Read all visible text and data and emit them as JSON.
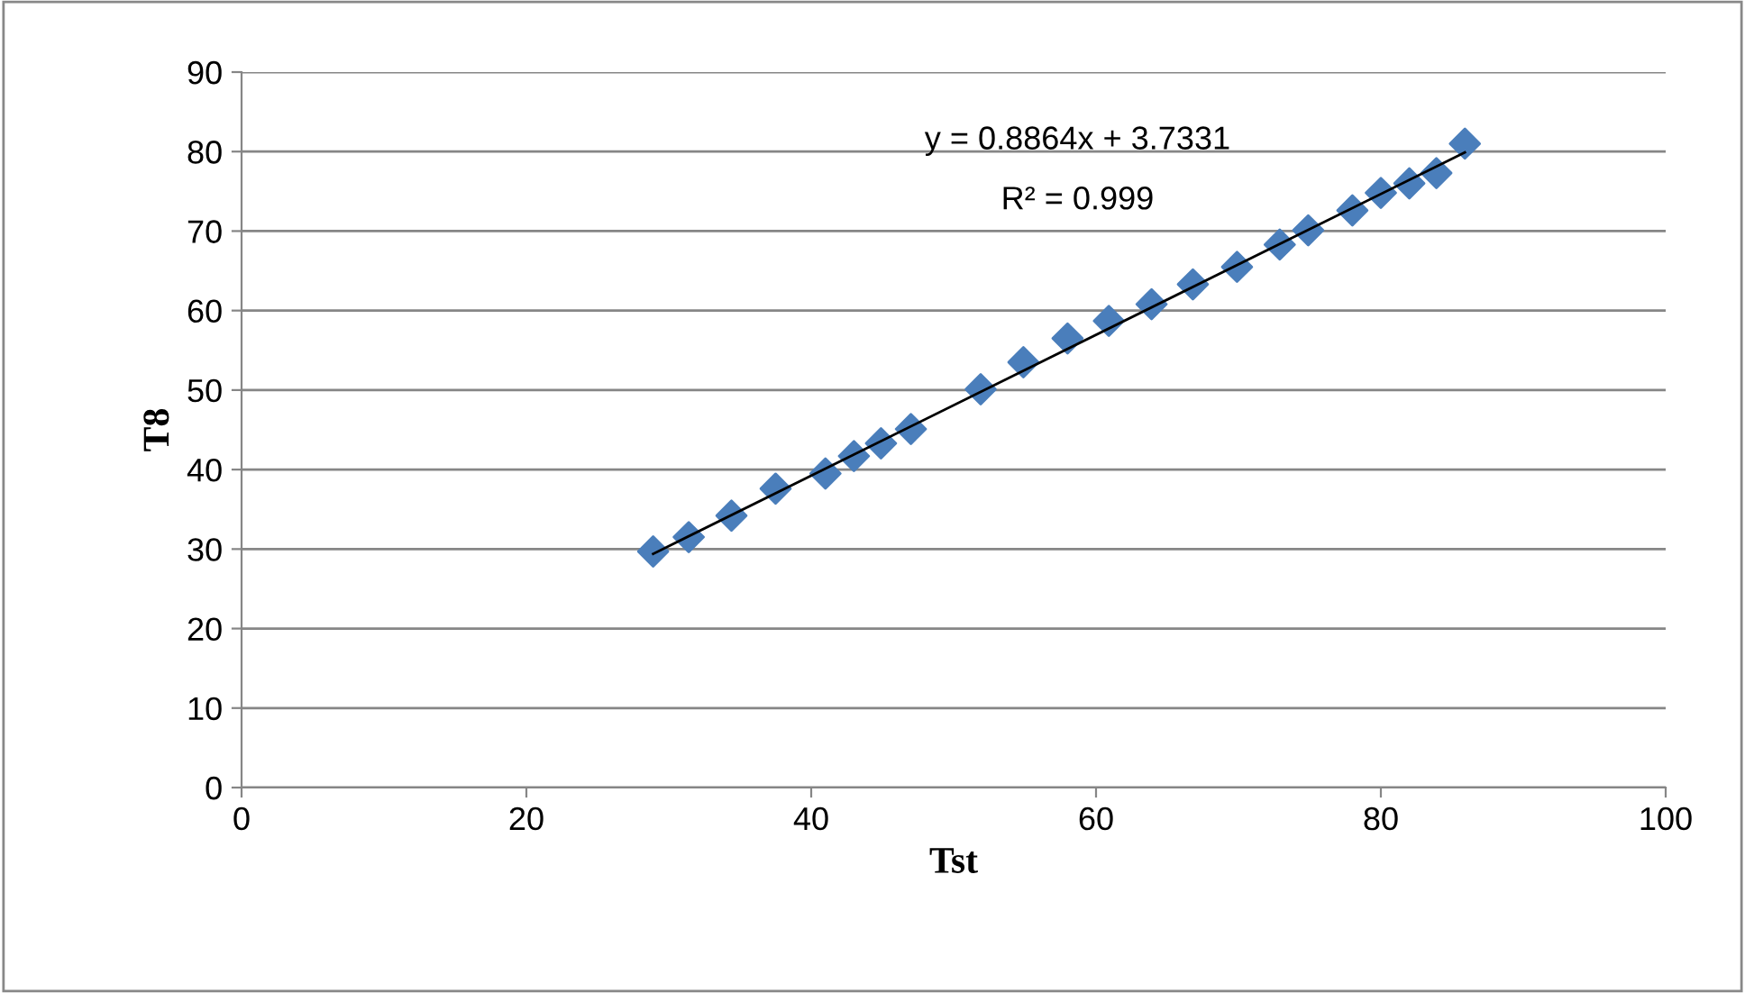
{
  "chart_data": {
    "type": "scatter",
    "xlabel": "Tst",
    "ylabel": "T8",
    "xlim": [
      0,
      100
    ],
    "xticks": [
      0,
      20,
      40,
      60,
      80,
      100
    ],
    "ylim": [
      0,
      90
    ],
    "yticks": [
      0,
      10,
      20,
      30,
      40,
      50,
      60,
      70,
      80,
      90
    ],
    "grid": "y",
    "legend": false,
    "marker": "diamond",
    "annotations": [
      "y = 0.8864x + 3.7331",
      "R² = 0.999"
    ],
    "series": [
      {
        "color": "#4a7ebb",
        "x": [
          28.9,
          31.4,
          34.4,
          37.5,
          41.0,
          43.0,
          44.9,
          47.0,
          51.9,
          54.9,
          58.0,
          60.9,
          63.9,
          66.8,
          69.9,
          72.9,
          74.9,
          78.0,
          80.0,
          82.0,
          83.9,
          85.9
        ],
        "values": [
          29.7,
          31.5,
          34.2,
          37.6,
          39.5,
          41.7,
          43.3,
          45.1,
          50.1,
          53.5,
          56.5,
          58.7,
          60.8,
          63.3,
          65.5,
          68.3,
          70.1,
          72.6,
          74.8,
          76.0,
          77.3,
          81.0
        ]
      },
      {
        "type": "line",
        "color": "#000000",
        "marker": "none",
        "line_style": "solid",
        "x": [
          28.9,
          85.9
        ],
        "values": [
          29.4,
          79.9
        ]
      }
    ]
  }
}
